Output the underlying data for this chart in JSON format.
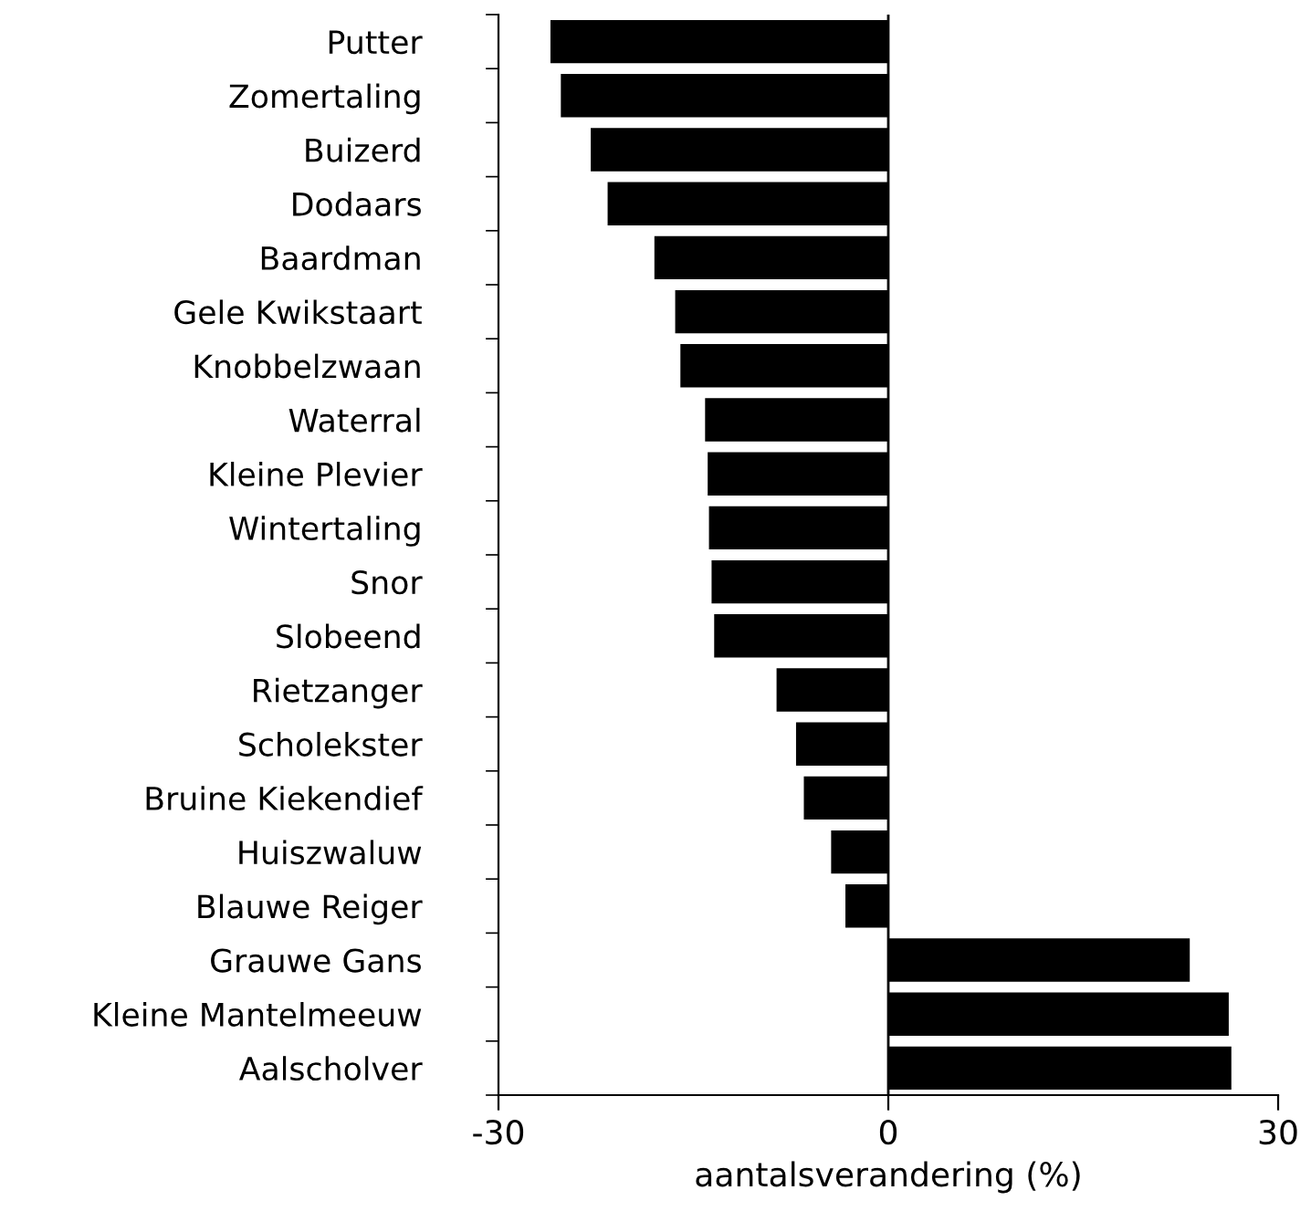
{
  "chart_data": {
    "type": "bar",
    "orientation": "horizontal",
    "xlabel": "aantalsverandering (%)",
    "categories": [
      "Putter",
      "Zomertaling",
      "Buizerd",
      "Dodaars",
      "Baardman",
      "Gele Kwikstaart",
      "Knobbelzwaan",
      "Waterral",
      "Kleine Plevier",
      "Wintertaling",
      "Snor",
      "Slobeend",
      "Rietzanger",
      "Scholekster",
      "Bruine Kiekendief",
      "Huiszwaluw",
      "Blauwe Reiger",
      "Grauwe Gans",
      "Kleine Mantelmeeuw",
      "Aalscholver"
    ],
    "values": [
      -26.0,
      -25.2,
      -22.9,
      -21.6,
      -18.0,
      -16.4,
      -16.0,
      -14.1,
      -13.9,
      -13.8,
      -13.6,
      -13.4,
      -8.6,
      -7.1,
      -6.5,
      -4.4,
      -3.3,
      23.2,
      26.2,
      26.4
    ],
    "color": "#000000",
    "xlim": [
      -30,
      30
    ],
    "xticks": [
      -30,
      0,
      30
    ],
    "grid": false,
    "legend": false,
    "ref_lines": [
      {
        "axis": "x",
        "value": 0,
        "color": "#000000"
      }
    ]
  }
}
